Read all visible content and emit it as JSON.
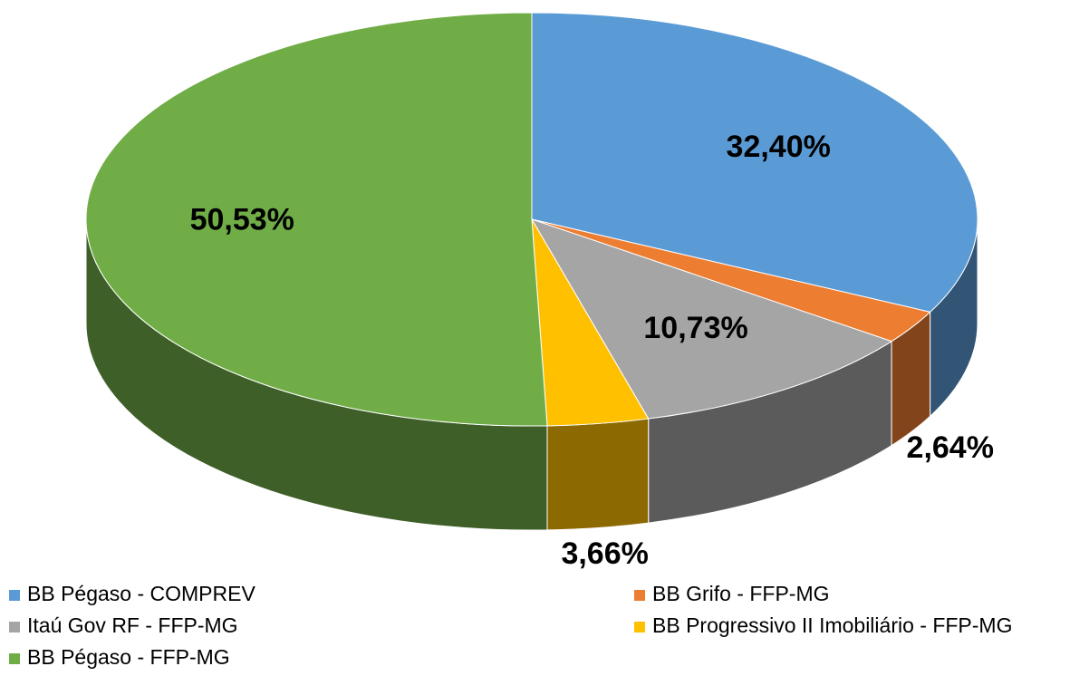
{
  "chart_data": {
    "type": "pie",
    "start_angle": 0,
    "direction": "clockwise",
    "categories": [
      "BB Pégaso - COMPREV",
      "BB Grifo - FFP-MG",
      "Itaú Gov RF - FFP-MG",
      "BB Progressivo II Imobiliário - FFP-MG",
      "BB Pégaso - FFP-MG"
    ],
    "values": [
      32.4,
      2.64,
      10.73,
      3.66,
      50.53
    ],
    "value_labels": [
      "32,40%",
      "2,64%",
      "10,73%",
      "3,66%",
      "50,53%"
    ],
    "colors": [
      "#5b9bd5",
      "#ed7d31",
      "#a5a5a5",
      "#ffc000",
      "#70ad47"
    ]
  }
}
